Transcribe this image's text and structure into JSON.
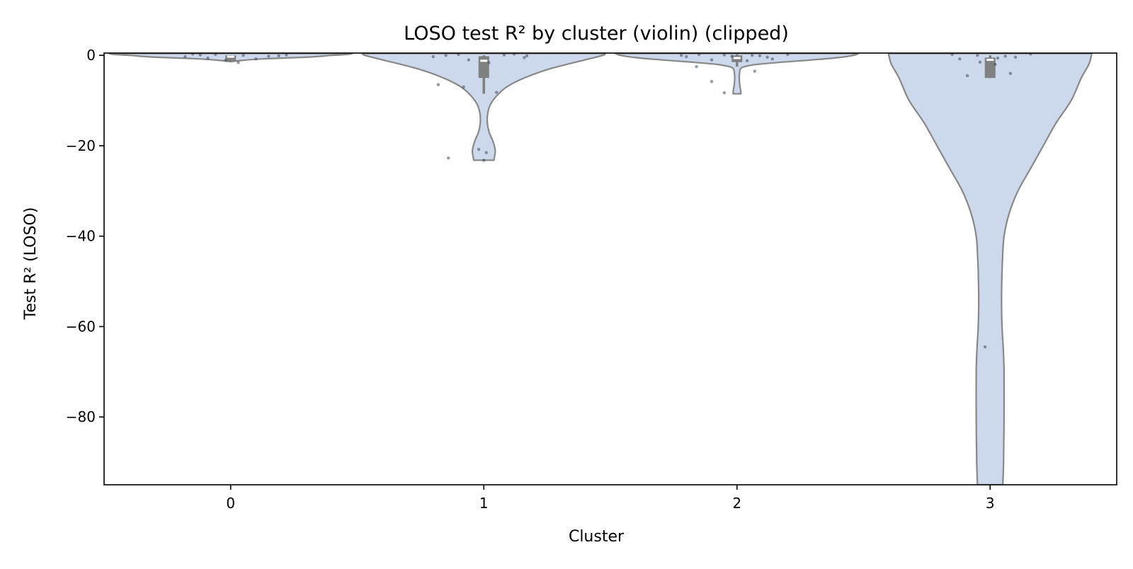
{
  "chart_data": {
    "type": "violin",
    "title": "LOSO test R² by cluster (violin) (clipped)",
    "xlabel": "Cluster",
    "ylabel": "Test R² (LOSO)",
    "categories": [
      "0",
      "1",
      "2",
      "3"
    ],
    "ylim": [
      -95,
      0.5
    ],
    "yticks": [
      {
        "value": 0,
        "label": "0"
      },
      {
        "value": -20,
        "label": "−20"
      },
      {
        "value": -40,
        "label": "−40"
      },
      {
        "value": -60,
        "label": "−60"
      },
      {
        "value": -80,
        "label": "−80"
      }
    ],
    "grid": false,
    "colors": {
      "violin_fill": "#ccd8ec",
      "violin_edge": "#888888",
      "box": "#808080",
      "points": "#3d4a5c",
      "axes": "#000000"
    },
    "violins": [
      {
        "category": "0",
        "profile": [
          [
            0.4,
            0.48
          ],
          [
            0.2,
            0.46
          ],
          [
            0,
            0.4
          ],
          [
            -0.4,
            0.3
          ],
          [
            -0.8,
            0.12
          ],
          [
            -1.2,
            0.03
          ],
          [
            -1.4,
            0.0
          ]
        ],
        "box": {
          "q1": -1.4,
          "median": -0.3,
          "q3": 0.0,
          "whisker_low": -1.5,
          "whisker_high": 0.0
        },
        "points": [
          [
            -0.12,
            0.1
          ],
          [
            -0.06,
            0.2
          ],
          [
            0.05,
            0.0
          ],
          [
            0.15,
            -0.2
          ],
          [
            -0.18,
            -0.3
          ],
          [
            0.22,
            0.1
          ],
          [
            -0.09,
            -0.6
          ],
          [
            0.1,
            -0.8
          ],
          [
            -0.02,
            -1.1
          ],
          [
            0.03,
            -1.6
          ],
          [
            -0.15,
            0.3
          ],
          [
            0.19,
            -0.1
          ]
        ]
      },
      {
        "category": "1",
        "profile": [
          [
            0.4,
            0.48
          ],
          [
            0,
            0.47
          ],
          [
            -1,
            0.4
          ],
          [
            -3,
            0.26
          ],
          [
            -5,
            0.16
          ],
          [
            -7,
            0.09
          ],
          [
            -9,
            0.05
          ],
          [
            -11,
            0.025
          ],
          [
            -13,
            0.015
          ],
          [
            -15,
            0.014
          ],
          [
            -17,
            0.021
          ],
          [
            -19,
            0.036
          ],
          [
            -21,
            0.045
          ],
          [
            -22.5,
            0.042
          ],
          [
            -23.2,
            0.04
          ]
        ],
        "box": {
          "q1": -5,
          "median": -1.2,
          "q3": -0.2,
          "whisker_low": -8.5,
          "whisker_high": 0.0
        },
        "points": [
          [
            -0.1,
            0.2
          ],
          [
            0.08,
            0.1
          ],
          [
            -0.2,
            -0.3
          ],
          [
            0.16,
            -0.5
          ],
          [
            -0.06,
            -1.0
          ],
          [
            0.02,
            -1.6
          ],
          [
            -0.15,
            0.0
          ],
          [
            0.12,
            0.3
          ],
          [
            -0.08,
            -7.0
          ],
          [
            -0.18,
            -6.5
          ],
          [
            0.05,
            -8.2
          ],
          [
            -0.02,
            -20.8
          ],
          [
            0.01,
            -21.5
          ],
          [
            -0.14,
            -22.7
          ],
          [
            0.0,
            -23.2
          ],
          [
            0.17,
            -0.1
          ]
        ]
      },
      {
        "category": "2",
        "profile": [
          [
            0.4,
            0.48
          ],
          [
            0,
            0.46
          ],
          [
            -0.5,
            0.4
          ],
          [
            -1,
            0.3
          ],
          [
            -1.5,
            0.18
          ],
          [
            -2,
            0.08
          ],
          [
            -2.5,
            0.03
          ],
          [
            -3,
            0.014
          ],
          [
            -4,
            0.01
          ],
          [
            -5,
            0.009
          ],
          [
            -6,
            0.01
          ],
          [
            -7,
            0.012
          ],
          [
            -8,
            0.015
          ],
          [
            -8.5,
            0.015
          ]
        ],
        "box": {
          "q1": -1.5,
          "median": -0.6,
          "q3": 0.0,
          "whisker_low": -2.5,
          "whisker_high": 0.3
        },
        "points": [
          [
            -0.15,
            0.2
          ],
          [
            -0.05,
            0.1
          ],
          [
            0.06,
            0.0
          ],
          [
            0.12,
            -0.4
          ],
          [
            -0.2,
            -0.3
          ],
          [
            0.2,
            0.2
          ],
          [
            -0.1,
            -1.0
          ],
          [
            0.04,
            -1.2
          ],
          [
            -0.16,
            -2.5
          ],
          [
            0.07,
            -3.5
          ],
          [
            -0.1,
            -5.8
          ],
          [
            -0.05,
            -8.3
          ],
          [
            0.14,
            -0.8
          ],
          [
            -0.22,
            0.0
          ],
          [
            0.09,
            -0.1
          ],
          [
            -0.02,
            -0.2
          ]
        ]
      },
      {
        "category": "3",
        "profile": [
          [
            0.4,
            0.4
          ],
          [
            0,
            0.4
          ],
          [
            -2,
            0.39
          ],
          [
            -5,
            0.36
          ],
          [
            -10,
            0.32
          ],
          [
            -15,
            0.26
          ],
          [
            -20,
            0.21
          ],
          [
            -25,
            0.16
          ],
          [
            -30,
            0.11
          ],
          [
            -35,
            0.075
          ],
          [
            -40,
            0.055
          ],
          [
            -45,
            0.049
          ],
          [
            -50,
            0.046
          ],
          [
            -55,
            0.045
          ],
          [
            -60,
            0.047
          ],
          [
            -65,
            0.052
          ],
          [
            -70,
            0.055
          ],
          [
            -80,
            0.055
          ],
          [
            -90,
            0.053
          ],
          [
            -95,
            0.05
          ]
        ],
        "box": {
          "q1": -5,
          "median": -1.0,
          "q3": -0.5,
          "whisker_low": -5,
          "whisker_high": 0.0
        },
        "points": [
          [
            -0.05,
            0.0
          ],
          [
            0.06,
            -0.2
          ],
          [
            -0.12,
            -0.8
          ],
          [
            0.16,
            0.3
          ],
          [
            0.02,
            -2.0
          ],
          [
            -0.04,
            -1.5
          ],
          [
            -0.09,
            -4.5
          ],
          [
            0.08,
            -4.0
          ],
          [
            -0.02,
            -64.5
          ],
          [
            0.1,
            -0.4
          ],
          [
            -0.15,
            0.2
          ],
          [
            0.03,
            -0.6
          ]
        ]
      }
    ]
  }
}
